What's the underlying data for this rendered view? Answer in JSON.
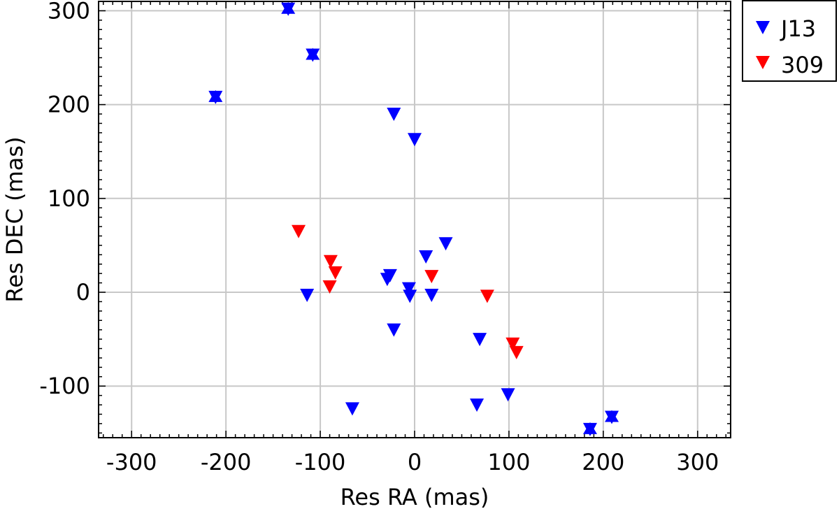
{
  "chart_data": {
    "type": "scatter",
    "title": "",
    "xlabel": "Res RA (mas)",
    "ylabel": "Res DEC (mas)",
    "xlim": [
      -335,
      335
    ],
    "ylim": [
      -155,
      310
    ],
    "xticks": [
      -300,
      -200,
      -100,
      0,
      100,
      200,
      300
    ],
    "yticks": [
      -100,
      0,
      100,
      200,
      300
    ],
    "grid": true,
    "legend_position": "outside-top-right",
    "series": [
      {
        "name": "J13",
        "color": "#0000ff",
        "marker": "triangle-down",
        "points": [
          {
            "x": -134,
            "y": 302,
            "star": true
          },
          {
            "x": -108,
            "y": 253,
            "star": true
          },
          {
            "x": -211,
            "y": 208,
            "star": true
          },
          {
            "x": -22,
            "y": 190
          },
          {
            "x": 0,
            "y": 163
          },
          {
            "x": 33,
            "y": 52
          },
          {
            "x": 12,
            "y": 38
          },
          {
            "x": -26,
            "y": 18
          },
          {
            "x": -29,
            "y": 14
          },
          {
            "x": -6,
            "y": 4
          },
          {
            "x": -5,
            "y": -4
          },
          {
            "x": 18,
            "y": -3
          },
          {
            "x": -114,
            "y": -3
          },
          {
            "x": -22,
            "y": -40
          },
          {
            "x": 69,
            "y": -50
          },
          {
            "x": 99,
            "y": -109
          },
          {
            "x": 66,
            "y": -120
          },
          {
            "x": -66,
            "y": -124
          },
          {
            "x": 209,
            "y": -133,
            "star": true
          },
          {
            "x": 186,
            "y": -146,
            "star": true
          }
        ]
      },
      {
        "name": "309",
        "color": "#ff0000",
        "marker": "triangle-down",
        "points": [
          {
            "x": -123,
            "y": 65
          },
          {
            "x": -89,
            "y": 33
          },
          {
            "x": -84,
            "y": 21
          },
          {
            "x": -90,
            "y": 6
          },
          {
            "x": 18,
            "y": 17
          },
          {
            "x": 77,
            "y": -4
          },
          {
            "x": 104,
            "y": -55
          },
          {
            "x": 108,
            "y": -64
          }
        ]
      }
    ]
  }
}
